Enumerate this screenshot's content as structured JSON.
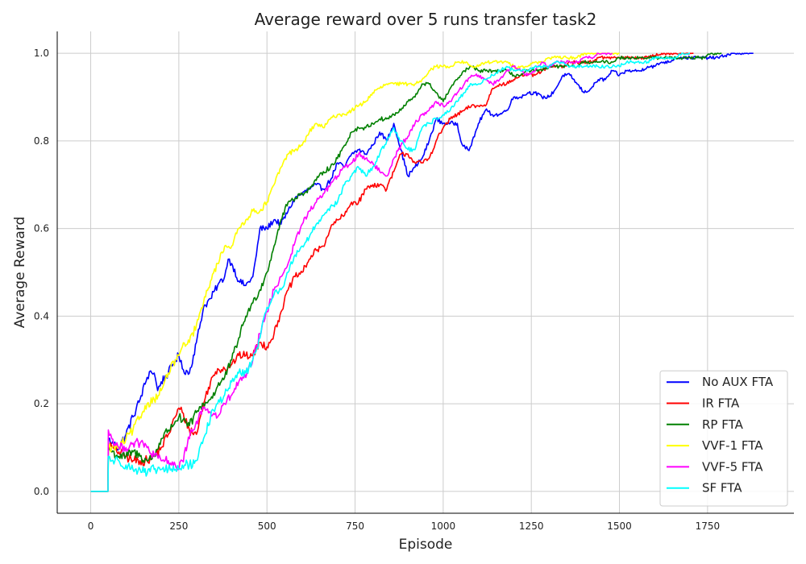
{
  "chart_data": {
    "type": "line",
    "title": "Average reward over 5 runs transfer task2",
    "xlabel": "Episode",
    "ylabel": "Average Reward",
    "xlim": [
      -95,
      1995
    ],
    "ylim": [
      -0.05,
      1.05
    ],
    "xticks": [
      0,
      250,
      500,
      750,
      1000,
      1250,
      1500,
      1750
    ],
    "yticks": [
      0.0,
      0.2,
      0.4,
      0.6,
      0.8,
      1.0
    ],
    "xtick_labels": [
      "0",
      "250",
      "500",
      "750",
      "1000",
      "1250",
      "1500",
      "1750"
    ],
    "ytick_labels": [
      "0.0",
      "0.2",
      "0.4",
      "0.6",
      "0.8",
      "1.0"
    ],
    "grid": true,
    "legend_position": "bottom-right",
    "series": [
      {
        "name": "No AUX FTA",
        "color": "#0000ff",
        "x": [
          0,
          49,
          50,
          60,
          80,
          100,
          120,
          140,
          160,
          170,
          180,
          190,
          200,
          220,
          240,
          250,
          260,
          280,
          300,
          320,
          340,
          360,
          380,
          390,
          400,
          420,
          440,
          460,
          470,
          480,
          500,
          520,
          540,
          560,
          580,
          600,
          620,
          640,
          660,
          680,
          700,
          720,
          740,
          760,
          780,
          800,
          820,
          840,
          860,
          880,
          900,
          920,
          940,
          960,
          980,
          1000,
          1020,
          1040,
          1050,
          1060,
          1070,
          1080,
          1100,
          1120,
          1140,
          1160,
          1180,
          1200,
          1220,
          1240,
          1260,
          1280,
          1300,
          1320,
          1340,
          1360,
          1380,
          1400,
          1420,
          1440,
          1460,
          1480,
          1500,
          1520,
          1540,
          1560,
          1580,
          1600,
          1620,
          1640,
          1660,
          1680,
          1700,
          1720,
          1740,
          1760,
          1780,
          1800,
          1820,
          1840,
          1860,
          1880
        ],
        "y": [
          0.0,
          0.0,
          0.12,
          0.11,
          0.1,
          0.13,
          0.17,
          0.21,
          0.26,
          0.275,
          0.27,
          0.23,
          0.25,
          0.27,
          0.3,
          0.31,
          0.28,
          0.27,
          0.34,
          0.42,
          0.44,
          0.47,
          0.49,
          0.53,
          0.52,
          0.48,
          0.47,
          0.49,
          0.54,
          0.6,
          0.6,
          0.62,
          0.61,
          0.64,
          0.67,
          0.68,
          0.69,
          0.7,
          0.69,
          0.71,
          0.75,
          0.74,
          0.77,
          0.78,
          0.77,
          0.79,
          0.82,
          0.8,
          0.84,
          0.78,
          0.72,
          0.74,
          0.76,
          0.8,
          0.85,
          0.84,
          0.84,
          0.84,
          0.8,
          0.79,
          0.78,
          0.79,
          0.84,
          0.87,
          0.86,
          0.86,
          0.87,
          0.9,
          0.9,
          0.91,
          0.91,
          0.9,
          0.9,
          0.92,
          0.95,
          0.95,
          0.93,
          0.91,
          0.92,
          0.94,
          0.94,
          0.96,
          0.95,
          0.96,
          0.96,
          0.96,
          0.97,
          0.97,
          0.98,
          0.98,
          0.99,
          0.99,
          0.99,
          0.99,
          0.99,
          0.99,
          0.99,
          0.995,
          1.0,
          1.0,
          1.0,
          1.0
        ]
      },
      {
        "name": "IR FTA",
        "color": "#ff0000",
        "x": [
          0,
          49,
          50,
          60,
          80,
          100,
          120,
          140,
          160,
          180,
          200,
          220,
          240,
          250,
          260,
          280,
          300,
          320,
          340,
          360,
          380,
          400,
          420,
          440,
          460,
          480,
          500,
          520,
          540,
          560,
          580,
          600,
          620,
          640,
          660,
          680,
          700,
          720,
          740,
          760,
          780,
          800,
          820,
          840,
          860,
          880,
          900,
          920,
          940,
          960,
          980,
          1000,
          1020,
          1040,
          1060,
          1080,
          1100,
          1120,
          1140,
          1160,
          1180,
          1200,
          1220,
          1240,
          1260,
          1280,
          1300,
          1320,
          1340,
          1360,
          1380,
          1400,
          1420,
          1440,
          1460,
          1480,
          1500,
          1520,
          1540,
          1560,
          1580,
          1600,
          1620,
          1640,
          1660,
          1680,
          1700,
          1710
        ],
        "y": [
          0.0,
          0.0,
          0.11,
          0.1,
          0.09,
          0.08,
          0.07,
          0.07,
          0.07,
          0.08,
          0.1,
          0.13,
          0.17,
          0.19,
          0.18,
          0.14,
          0.13,
          0.2,
          0.25,
          0.28,
          0.28,
          0.29,
          0.31,
          0.31,
          0.31,
          0.34,
          0.33,
          0.36,
          0.41,
          0.46,
          0.49,
          0.5,
          0.53,
          0.55,
          0.56,
          0.6,
          0.62,
          0.63,
          0.66,
          0.66,
          0.69,
          0.7,
          0.7,
          0.69,
          0.73,
          0.77,
          0.77,
          0.75,
          0.75,
          0.76,
          0.8,
          0.83,
          0.85,
          0.86,
          0.87,
          0.88,
          0.88,
          0.88,
          0.92,
          0.93,
          0.93,
          0.94,
          0.95,
          0.95,
          0.95,
          0.96,
          0.97,
          0.97,
          0.97,
          0.98,
          0.98,
          0.98,
          0.98,
          0.99,
          0.99,
          0.99,
          0.99,
          0.99,
          0.99,
          0.99,
          0.99,
          0.995,
          1.0,
          1.0,
          1.0,
          1.0,
          1.0,
          1.0
        ]
      },
      {
        "name": "RP FTA",
        "color": "#008000",
        "x": [
          0,
          49,
          50,
          60,
          80,
          100,
          120,
          140,
          160,
          180,
          200,
          220,
          240,
          250,
          260,
          280,
          300,
          320,
          340,
          360,
          380,
          400,
          420,
          440,
          460,
          480,
          500,
          520,
          540,
          560,
          580,
          600,
          620,
          640,
          660,
          680,
          700,
          720,
          740,
          760,
          780,
          800,
          820,
          840,
          860,
          880,
          900,
          920,
          940,
          960,
          980,
          1000,
          1020,
          1040,
          1060,
          1080,
          1100,
          1120,
          1140,
          1160,
          1180,
          1200,
          1220,
          1240,
          1260,
          1280,
          1300,
          1320,
          1340,
          1360,
          1380,
          1400,
          1420,
          1440,
          1460,
          1480,
          1500,
          1520,
          1540,
          1560,
          1580,
          1600,
          1620,
          1640,
          1660,
          1680,
          1700,
          1720,
          1740,
          1760,
          1780,
          1790
        ],
        "y": [
          0.0,
          0.0,
          0.1,
          0.09,
          0.08,
          0.08,
          0.09,
          0.08,
          0.07,
          0.08,
          0.12,
          0.14,
          0.16,
          0.17,
          0.16,
          0.15,
          0.18,
          0.2,
          0.21,
          0.24,
          0.26,
          0.3,
          0.35,
          0.4,
          0.43,
          0.46,
          0.5,
          0.56,
          0.62,
          0.66,
          0.67,
          0.68,
          0.69,
          0.71,
          0.73,
          0.74,
          0.76,
          0.79,
          0.82,
          0.83,
          0.83,
          0.84,
          0.85,
          0.85,
          0.86,
          0.87,
          0.89,
          0.9,
          0.93,
          0.93,
          0.91,
          0.89,
          0.92,
          0.94,
          0.96,
          0.97,
          0.96,
          0.96,
          0.96,
          0.96,
          0.96,
          0.95,
          0.95,
          0.96,
          0.96,
          0.96,
          0.97,
          0.97,
          0.97,
          0.97,
          0.97,
          0.98,
          0.98,
          0.98,
          0.98,
          0.98,
          0.99,
          0.99,
          0.99,
          0.99,
          0.99,
          0.99,
          0.99,
          0.99,
          0.99,
          0.99,
          0.99,
          0.99,
          0.99,
          1.0,
          1.0,
          1.0
        ]
      },
      {
        "name": "VVF-1 FTA",
        "color": "#ffff00",
        "x": [
          0,
          49,
          50,
          60,
          80,
          100,
          120,
          140,
          160,
          180,
          200,
          220,
          240,
          250,
          260,
          280,
          300,
          320,
          340,
          360,
          380,
          400,
          420,
          440,
          460,
          480,
          500,
          520,
          540,
          560,
          580,
          600,
          620,
          640,
          660,
          680,
          700,
          720,
          740,
          760,
          780,
          800,
          820,
          840,
          860,
          880,
          900,
          920,
          940,
          960,
          980,
          1000,
          1020,
          1040,
          1060,
          1080,
          1100,
          1120,
          1140,
          1160,
          1180,
          1200,
          1220,
          1240,
          1260,
          1280,
          1300,
          1320,
          1340,
          1360,
          1380,
          1400,
          1420,
          1440,
          1460,
          1480,
          1500
        ],
        "y": [
          0.0,
          0.0,
          0.1,
          0.1,
          0.1,
          0.12,
          0.14,
          0.17,
          0.2,
          0.21,
          0.23,
          0.27,
          0.3,
          0.31,
          0.33,
          0.34,
          0.38,
          0.43,
          0.48,
          0.52,
          0.56,
          0.56,
          0.6,
          0.62,
          0.64,
          0.64,
          0.66,
          0.7,
          0.74,
          0.77,
          0.78,
          0.79,
          0.82,
          0.84,
          0.83,
          0.85,
          0.86,
          0.86,
          0.87,
          0.88,
          0.89,
          0.91,
          0.92,
          0.93,
          0.93,
          0.93,
          0.93,
          0.93,
          0.94,
          0.96,
          0.97,
          0.97,
          0.97,
          0.98,
          0.98,
          0.97,
          0.97,
          0.98,
          0.98,
          0.98,
          0.98,
          0.97,
          0.97,
          0.97,
          0.98,
          0.98,
          0.99,
          0.99,
          0.99,
          0.99,
          0.99,
          1.0,
          1.0,
          1.0,
          1.0,
          1.0,
          1.0
        ]
      },
      {
        "name": "VVF-5 FTA",
        "color": "#ff00ff",
        "x": [
          0,
          49,
          50,
          60,
          80,
          100,
          120,
          140,
          160,
          180,
          200,
          220,
          240,
          250,
          260,
          280,
          300,
          320,
          340,
          360,
          380,
          400,
          420,
          440,
          460,
          480,
          500,
          520,
          540,
          560,
          580,
          600,
          620,
          640,
          660,
          680,
          700,
          720,
          740,
          760,
          780,
          800,
          820,
          840,
          860,
          880,
          900,
          920,
          940,
          960,
          980,
          1000,
          1020,
          1040,
          1060,
          1080,
          1100,
          1120,
          1140,
          1160,
          1180,
          1200,
          1220,
          1240,
          1260,
          1280,
          1300,
          1320,
          1340,
          1360,
          1380,
          1400,
          1420,
          1440,
          1460,
          1480
        ],
        "y": [
          0.0,
          0.0,
          0.14,
          0.12,
          0.1,
          0.1,
          0.11,
          0.11,
          0.1,
          0.08,
          0.07,
          0.07,
          0.06,
          0.05,
          0.07,
          0.12,
          0.16,
          0.19,
          0.18,
          0.17,
          0.2,
          0.22,
          0.25,
          0.26,
          0.3,
          0.36,
          0.41,
          0.46,
          0.49,
          0.52,
          0.57,
          0.61,
          0.64,
          0.66,
          0.68,
          0.7,
          0.72,
          0.74,
          0.75,
          0.77,
          0.76,
          0.75,
          0.73,
          0.72,
          0.76,
          0.79,
          0.81,
          0.84,
          0.86,
          0.87,
          0.89,
          0.88,
          0.89,
          0.91,
          0.93,
          0.95,
          0.95,
          0.94,
          0.93,
          0.94,
          0.96,
          0.97,
          0.96,
          0.95,
          0.96,
          0.98,
          0.97,
          0.98,
          0.98,
          0.98,
          0.98,
          0.99,
          0.99,
          1.0,
          1.0,
          1.0
        ]
      },
      {
        "name": "SF FTA",
        "color": "#00ffff",
        "x": [
          0,
          49,
          50,
          60,
          80,
          100,
          120,
          140,
          160,
          180,
          200,
          220,
          240,
          250,
          260,
          280,
          300,
          320,
          340,
          360,
          380,
          400,
          420,
          440,
          460,
          480,
          500,
          520,
          540,
          560,
          580,
          600,
          620,
          640,
          660,
          680,
          700,
          720,
          740,
          760,
          780,
          800,
          820,
          840,
          860,
          880,
          900,
          920,
          940,
          960,
          980,
          1000,
          1020,
          1040,
          1060,
          1080,
          1100,
          1120,
          1140,
          1160,
          1180,
          1200,
          1220,
          1240,
          1260,
          1280,
          1300,
          1320,
          1340,
          1360,
          1380,
          1400,
          1420,
          1440,
          1460,
          1480,
          1500,
          1520,
          1540,
          1560,
          1580,
          1600,
          1620,
          1640,
          1660,
          1680,
          1700
        ],
        "y": [
          0.0,
          0.0,
          0.08,
          0.07,
          0.07,
          0.06,
          0.05,
          0.05,
          0.04,
          0.05,
          0.05,
          0.05,
          0.05,
          0.05,
          0.06,
          0.06,
          0.07,
          0.12,
          0.17,
          0.2,
          0.22,
          0.25,
          0.27,
          0.27,
          0.3,
          0.35,
          0.42,
          0.45,
          0.46,
          0.5,
          0.54,
          0.56,
          0.58,
          0.61,
          0.63,
          0.65,
          0.66,
          0.7,
          0.72,
          0.74,
          0.72,
          0.74,
          0.77,
          0.8,
          0.83,
          0.8,
          0.78,
          0.78,
          0.83,
          0.84,
          0.85,
          0.86,
          0.87,
          0.89,
          0.91,
          0.93,
          0.93,
          0.94,
          0.95,
          0.96,
          0.97,
          0.96,
          0.96,
          0.96,
          0.97,
          0.97,
          0.97,
          0.98,
          0.98,
          0.97,
          0.97,
          0.97,
          0.97,
          0.97,
          0.97,
          0.97,
          0.97,
          0.98,
          0.98,
          0.98,
          0.98,
          0.99,
          0.99,
          0.99,
          0.99,
          1.0,
          1.0
        ]
      }
    ]
  }
}
